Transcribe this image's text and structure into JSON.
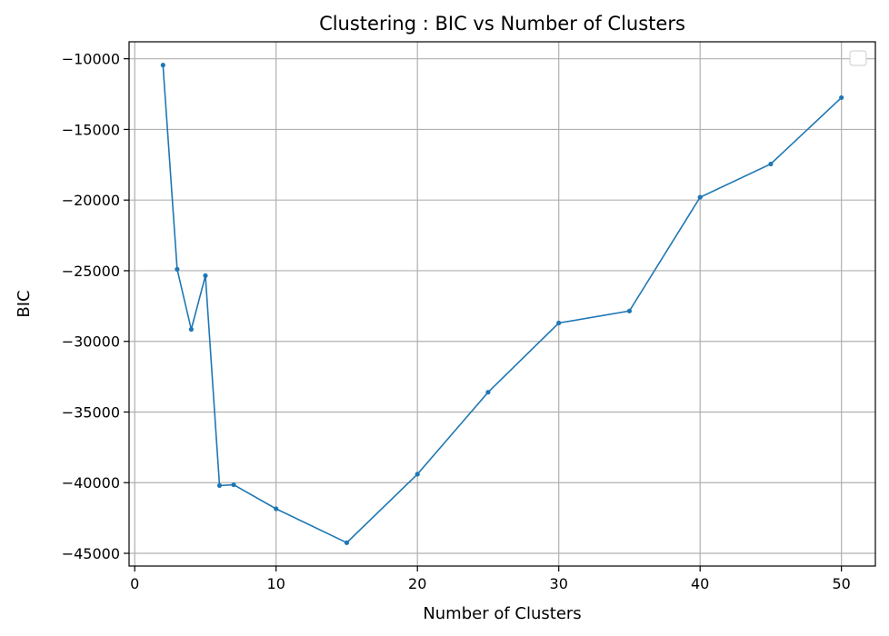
{
  "chart_data": {
    "type": "line",
    "title": "Clustering : BIC vs Number of Clusters",
    "xlabel": "Number of Clusters",
    "ylabel": "BIC",
    "xlim": [
      -0.4,
      52.4
    ],
    "ylim": [
      -45900,
      -8800
    ],
    "xticks": [
      0,
      10,
      20,
      30,
      40,
      50
    ],
    "yticks": [
      -10000,
      -15000,
      -20000,
      -25000,
      -30000,
      -35000,
      -40000,
      -45000
    ],
    "xtick_labels": [
      "0",
      "10",
      "20",
      "30",
      "40",
      "50"
    ],
    "ytick_labels": [
      "−10000",
      "−15000",
      "−20000",
      "−25000",
      "−30000",
      "−35000",
      "−40000",
      "−45000"
    ],
    "grid": true,
    "legend": "top-right (empty)",
    "series": [
      {
        "color": "#1f77b4",
        "x": [
          2,
          3,
          4,
          5,
          6,
          7,
          10,
          15,
          20,
          25,
          30,
          35,
          40,
          45,
          50
        ],
        "y": [
          -10450,
          -24900,
          -29150,
          -25350,
          -40200,
          -40150,
          -41850,
          -44250,
          -39400,
          -33600,
          -28700,
          -27850,
          -19800,
          -17450,
          -12750
        ]
      }
    ]
  }
}
